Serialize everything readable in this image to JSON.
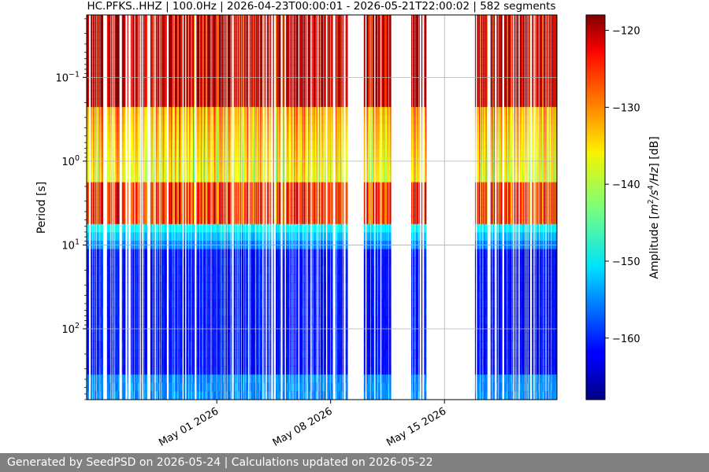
{
  "chart_data": {
    "type": "heatmap",
    "title": "HC.PFKS..HHZ | 100.0Hz | 2026-04-23T00:00:01 - 2026-05-21T22:00:02 | 582 segments",
    "xlabel": "",
    "ylabel": "Period [s]",
    "colorbar_label": "Amplitude [m²/s⁴/Hz] [dB]",
    "colorbar_label_parts": {
      "pre": "Amplitude [",
      "m": "m",
      "two": "2",
      "slash1": "/s",
      "four": "4",
      "slash2": "/",
      "hz": "Hz",
      "post": "] [dB]"
    },
    "colorbar_ticks": [
      -120,
      -130,
      -140,
      -150,
      -160
    ],
    "colorbar_tick_labels": [
      "−120",
      "−130",
      "−140",
      "−150",
      "−160"
    ],
    "colorbar_range": [
      -168,
      -118
    ],
    "colormap": "jet",
    "x_axis": {
      "type": "date",
      "range": [
        "2026-04-23T00:00:01",
        "2026-05-21T22:00:02"
      ],
      "ticks": [
        "2026-05-01",
        "2026-05-08",
        "2026-05-15"
      ],
      "tick_labels": [
        "May 01 2026",
        "May 08 2026",
        "May 15 2026"
      ]
    },
    "y_axis": {
      "type": "log",
      "inverted": true,
      "unit": "s",
      "range": [
        0.018,
        700
      ],
      "ticks": [
        0.1,
        1,
        10,
        100
      ],
      "tick_labels": [
        {
          "base": "10",
          "exp": "−1"
        },
        {
          "base": "10",
          "exp": "0"
        },
        {
          "base": "10",
          "exp": "1"
        },
        {
          "base": "10",
          "exp": "2"
        }
      ]
    },
    "data_gaps": [
      [
        "2026-05-09T01:00:00",
        "2026-05-10T01:00:00"
      ],
      [
        "2026-05-11T18:00:00",
        "2026-05-12T23:00:00"
      ],
      [
        "2026-05-13T21:00:00",
        "2026-05-16T20:00:00"
      ]
    ],
    "grid": true
  },
  "footer": {
    "text": "Generated by SeedPSD on 2026-05-24 | Calculations updated on 2026-05-22"
  }
}
